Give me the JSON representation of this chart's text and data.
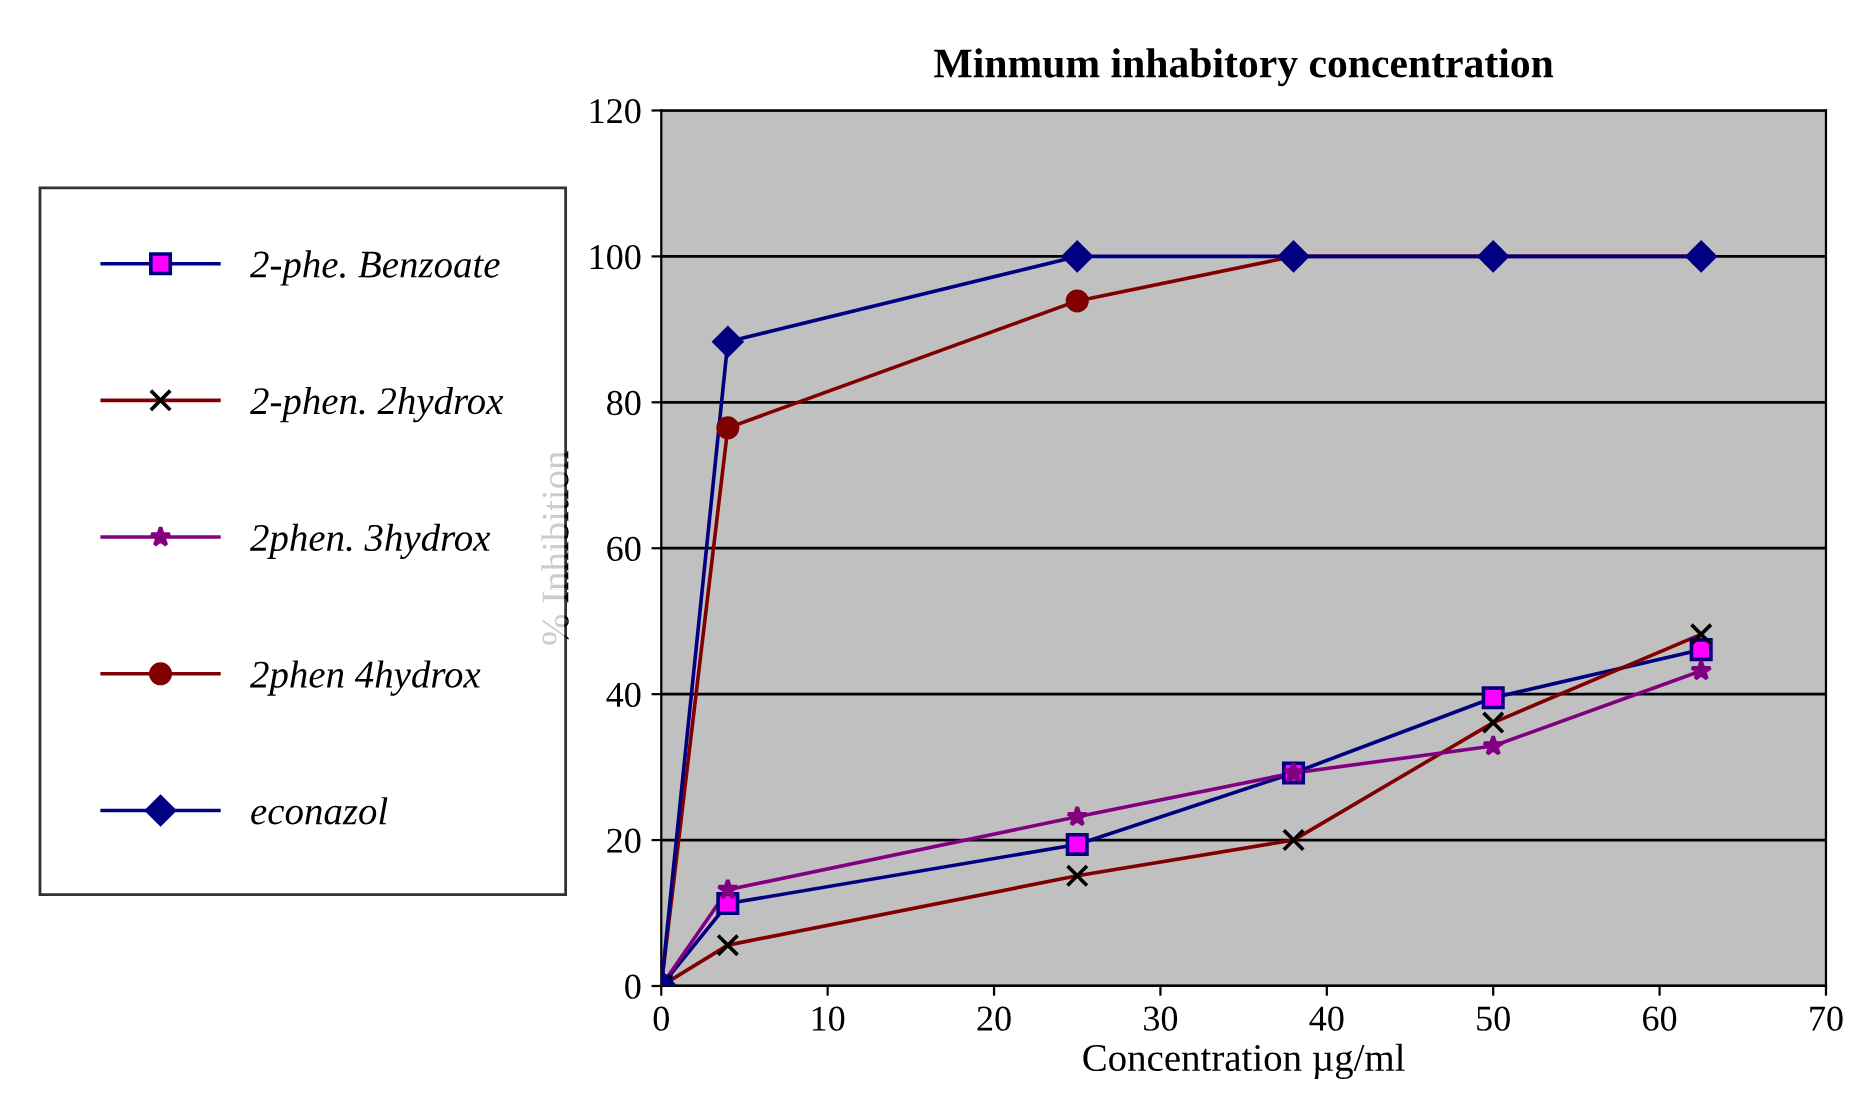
{
  "chart_data": {
    "type": "line",
    "title": "Minmum inhabitory concentration",
    "xlabel": "Concentration µg/ml",
    "ylabel": "% Inhibition",
    "x": [
      0,
      4,
      25,
      38,
      50,
      62.5
    ],
    "series": [
      {
        "name": "2-phe. Benzoate",
        "color": "#000080",
        "marker": "square",
        "colors": [
          "#ff00ff",
          "#ff00ff",
          "#ff00ff",
          "#ff00ff",
          "#ff00ff",
          "#ff00ff"
        ],
        "values": [
          0,
          11.3,
          19.4,
          29.2,
          39.5,
          46.1
        ]
      },
      {
        "name": "2-phen. 2hydrox",
        "color": "#800000",
        "marker": "cross",
        "colors": [
          "#000000",
          "#000000",
          "#000000",
          "#000000",
          "#000000",
          "#000000"
        ],
        "values": [
          0,
          5.6,
          15.1,
          20,
          36.1,
          48.2
        ]
      },
      {
        "name": "2phen. 3hydrox",
        "color": "#800080",
        "marker": "star",
        "values": [
          0,
          13.2,
          23.2,
          29.2,
          32.9,
          43.2
        ]
      },
      {
        "name": "2phen 4hydrox",
        "color": "#800000",
        "marker": "circle",
        "values": [
          0,
          76.5,
          93.9,
          100,
          100,
          100
        ]
      },
      {
        "name": "econazol",
        "color": "#000080",
        "marker": "diamond",
        "values": [
          0,
          88.3,
          100,
          100,
          100,
          100
        ]
      }
    ],
    "xlim": [
      0,
      70
    ],
    "xticks": [
      0,
      10,
      20,
      30,
      40,
      50,
      60,
      70
    ],
    "ylim": [
      0,
      120
    ],
    "yticks": [
      0,
      20,
      40,
      60,
      80,
      100,
      120
    ],
    "grid": "y",
    "legend": "left",
    "line_style": "solid"
  }
}
